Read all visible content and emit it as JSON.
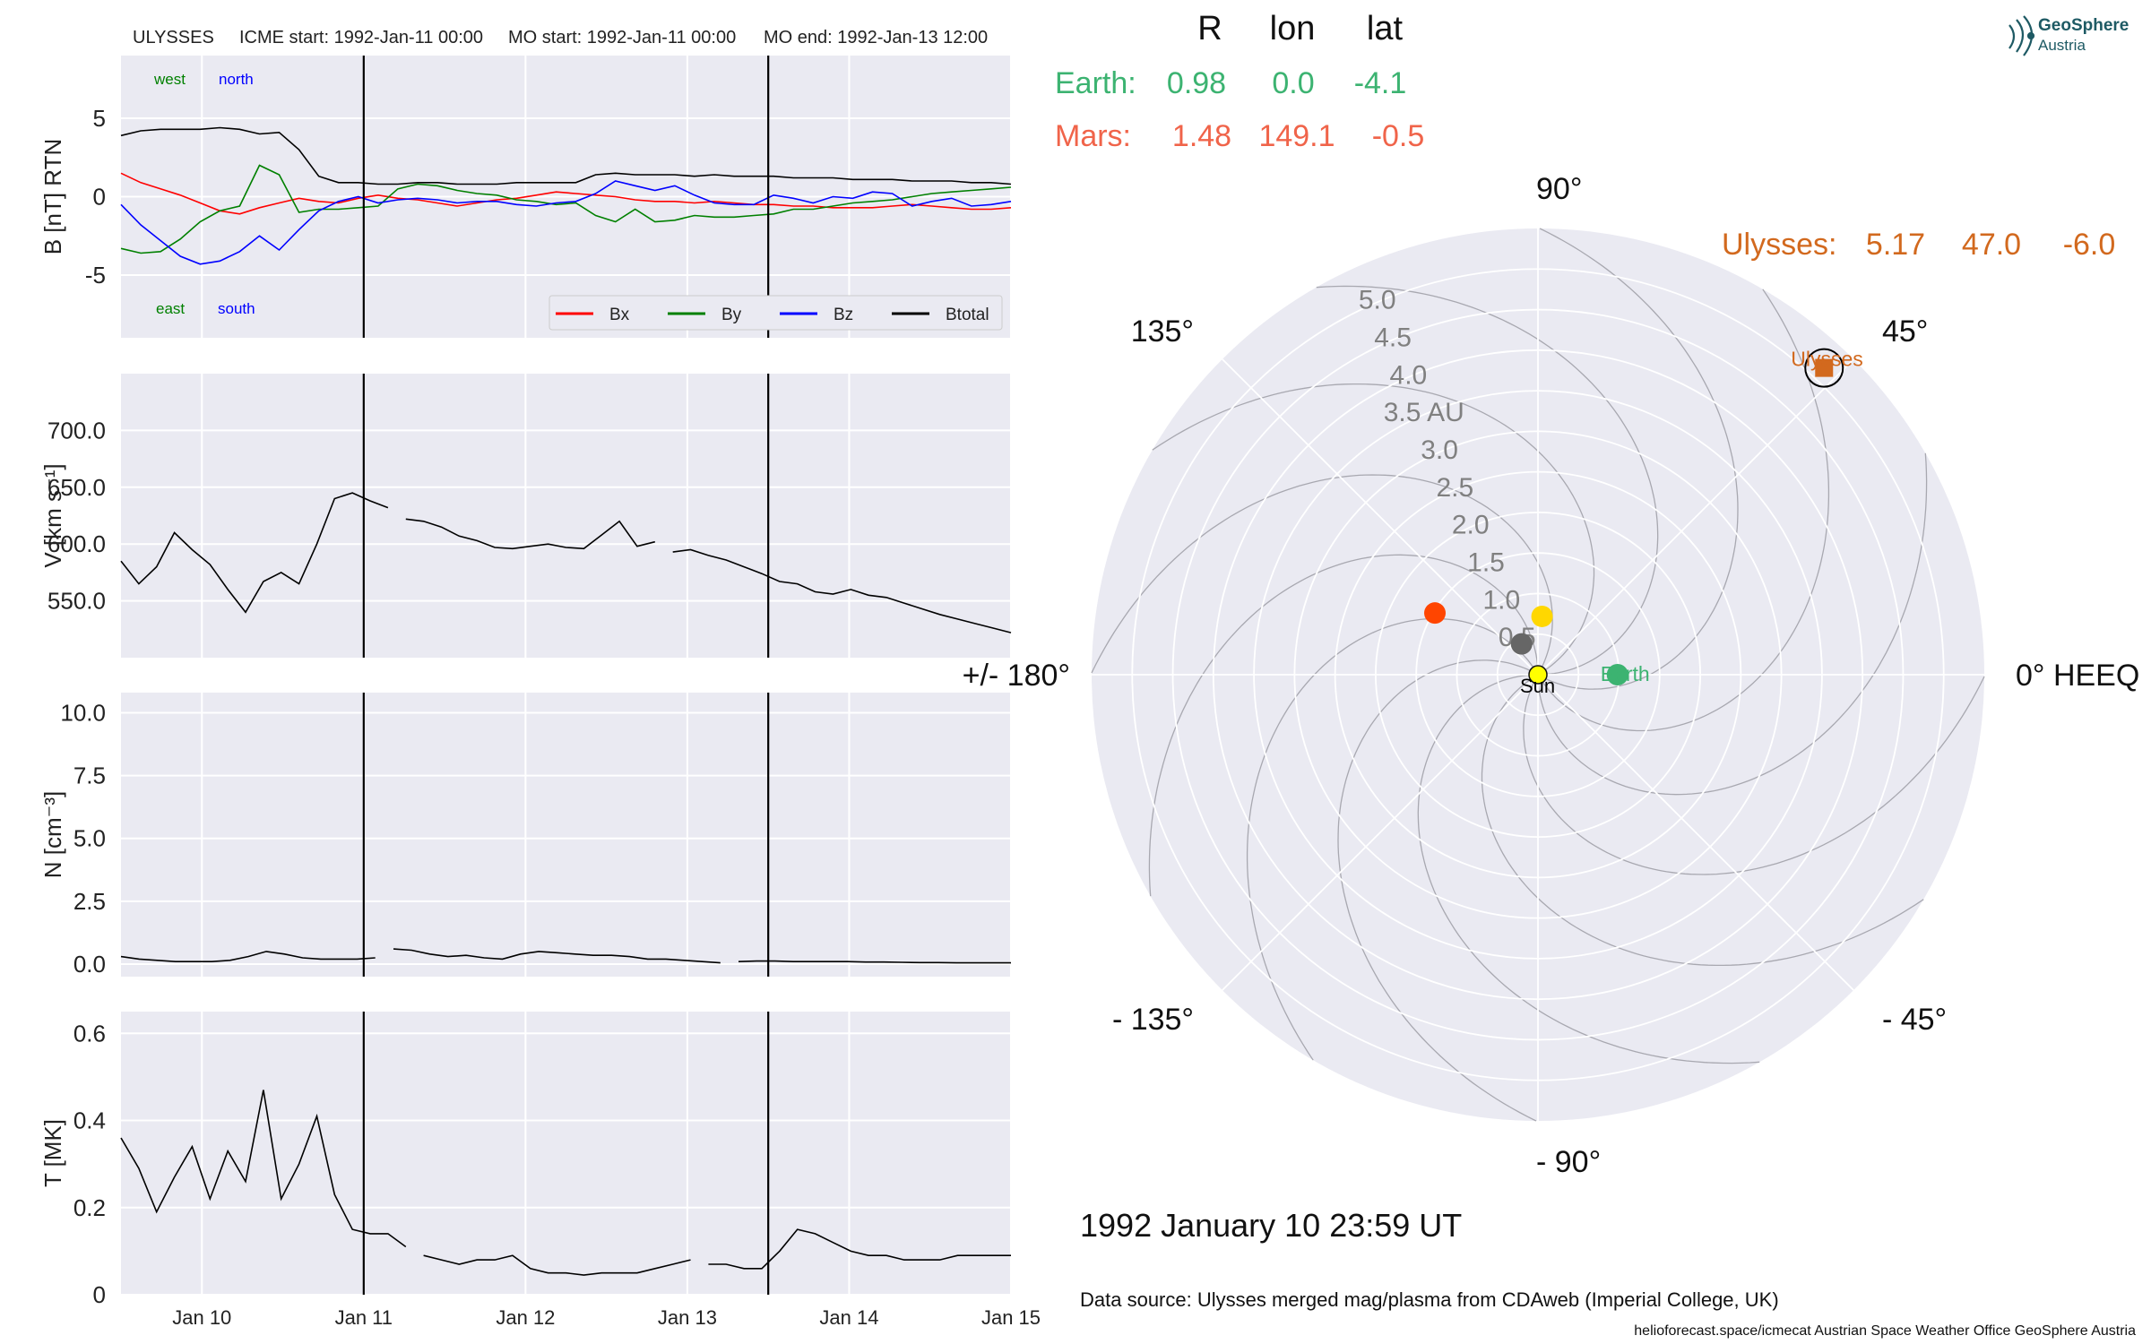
{
  "header": {
    "spacecraft": "ULYSSES",
    "icme_start": "ICME start: 1992-Jan-11 00:00",
    "mo_start": "MO start: 1992-Jan-11 00:00",
    "mo_end": "MO end: 1992-Jan-13 12:00"
  },
  "logo": {
    "line1": "GeoSphere",
    "line2": "Austria"
  },
  "position_table": {
    "headers": [
      "R",
      "lon",
      "lat"
    ],
    "earth": {
      "label": "Earth:",
      "R": "0.98",
      "lon": "0.0",
      "lat": "-4.1",
      "color": "#3cb371"
    },
    "mars": {
      "label": "Mars:",
      "R": "1.48",
      "lon": "149.1",
      "lat": "-0.5",
      "color": "#f0644a"
    },
    "ulysses": {
      "label": "Ulysses:",
      "R": "5.17",
      "lon": "47.0",
      "lat": "-6.0",
      "color": "#d2691e"
    }
  },
  "timestamp": "1992 January 10  23:59 UT",
  "data_source": "Data source: Ulysses merged mag/plasma from CDAweb (Imperial College, UK)",
  "footer": "helioforecast.space/icmecat   Austrian Space Weather Office   GeoSphere Austria",
  "colors": {
    "panel_bg": "#eaeaf2",
    "grid": "#ffffff",
    "bx": "#ff0000",
    "by": "#008000",
    "bz": "#0000ff",
    "btotal": "#000000"
  },
  "chart_data": [
    {
      "type": "line",
      "ylabel": "B [nT] RTN",
      "ylim": [
        -9,
        9
      ],
      "xlim": [
        0,
        132
      ],
      "x_start": "1992-01-09 12:00",
      "x_step_hours": 3,
      "x_ticks": [
        "Jan 10",
        "Jan 11",
        "Jan 12",
        "Jan 13",
        "Jan 14",
        "Jan 15"
      ],
      "y_ticks": [
        -5,
        0,
        5
      ],
      "legend_position": "lower-right",
      "annotations": {
        "west": "west",
        "north": "north",
        "east": "east",
        "south": "south"
      },
      "series": [
        {
          "name": "Bx",
          "color": "#ff0000",
          "values": [
            1.5,
            0.9,
            0.5,
            0.1,
            -0.4,
            -0.9,
            -1.1,
            -0.7,
            -0.4,
            -0.1,
            -0.3,
            -0.4,
            -0.1,
            0.1,
            -0.1,
            -0.2,
            -0.4,
            -0.6,
            -0.4,
            -0.2,
            -0.1,
            0.1,
            0.3,
            0.2,
            0.1,
            0.0,
            -0.2,
            -0.3,
            -0.3,
            -0.4,
            -0.3,
            -0.4,
            -0.5,
            -0.5,
            -0.6,
            -0.6,
            -0.7,
            -0.7,
            -0.7,
            -0.6,
            -0.5,
            -0.6,
            -0.7,
            -0.8,
            -0.8,
            -0.7
          ]
        },
        {
          "name": "By",
          "color": "#008000",
          "values": [
            -3.3,
            -3.6,
            -3.5,
            -2.7,
            -1.6,
            -0.9,
            -0.6,
            2.0,
            1.4,
            -1.0,
            -0.8,
            -0.8,
            -0.7,
            -0.6,
            0.5,
            0.8,
            0.7,
            0.4,
            0.2,
            0.1,
            -0.2,
            -0.3,
            -0.5,
            -0.4,
            -1.2,
            -1.6,
            -0.8,
            -1.6,
            -1.5,
            -1.2,
            -1.3,
            -1.3,
            -1.2,
            -1.1,
            -0.8,
            -0.8,
            -0.6,
            -0.4,
            -0.3,
            -0.2,
            0.0,
            0.2,
            0.3,
            0.4,
            0.5,
            0.6
          ]
        },
        {
          "name": "Bz",
          "color": "#0000ff",
          "values": [
            -0.5,
            -1.8,
            -2.8,
            -3.8,
            -4.3,
            -4.1,
            -3.5,
            -2.5,
            -3.4,
            -2.1,
            -0.9,
            -0.3,
            0.0,
            -0.4,
            -0.2,
            -0.1,
            -0.2,
            -0.4,
            -0.3,
            -0.3,
            -0.5,
            -0.6,
            -0.4,
            -0.3,
            0.2,
            1.0,
            0.7,
            0.4,
            0.7,
            0.1,
            -0.4,
            -0.5,
            -0.5,
            0.1,
            -0.1,
            -0.4,
            0.0,
            -0.1,
            0.3,
            0.2,
            -0.6,
            -0.3,
            -0.1,
            -0.6,
            -0.5,
            -0.3
          ]
        },
        {
          "name": "Btotal",
          "color": "#000000",
          "values": [
            3.9,
            4.2,
            4.3,
            4.3,
            4.3,
            4.4,
            4.3,
            4.0,
            4.1,
            3.0,
            1.3,
            0.9,
            0.9,
            0.8,
            0.8,
            0.9,
            0.9,
            0.8,
            0.8,
            0.8,
            0.9,
            0.9,
            0.9,
            0.9,
            1.4,
            1.5,
            1.4,
            1.4,
            1.4,
            1.3,
            1.4,
            1.3,
            1.3,
            1.3,
            1.2,
            1.2,
            1.2,
            1.1,
            1.1,
            1.1,
            1.0,
            1.0,
            1.0,
            0.9,
            0.9,
            0.8
          ]
        }
      ]
    },
    {
      "type": "line",
      "ylabel": "V [km s⁻¹]",
      "ylim": [
        500,
        750
      ],
      "xlim": [
        0,
        132
      ],
      "x_start": "1992-01-09 12:00",
      "x_step_hours": 3,
      "y_ticks": [
        550,
        600,
        650,
        700
      ],
      "gaps_after_index": [
        15,
        30
      ],
      "series": [
        {
          "name": "V",
          "color": "#000000",
          "values": [
            585,
            565,
            580,
            610,
            595,
            582,
            560,
            540,
            567,
            575,
            565,
            600,
            640,
            645,
            638,
            632,
            622,
            620,
            615,
            607,
            603,
            597,
            596,
            598,
            600,
            597,
            596,
            608,
            620,
            598,
            602,
            593,
            595,
            590,
            586,
            580,
            574,
            567,
            565,
            558,
            556,
            560,
            555,
            553,
            548,
            543,
            538,
            534,
            530,
            526,
            522
          ]
        }
      ]
    },
    {
      "type": "line",
      "ylabel": "N [cm⁻³]",
      "ylim": [
        -0.5,
        10.8
      ],
      "xlim": [
        0,
        132
      ],
      "x_start": "1992-01-09 12:00",
      "x_step_hours": 3,
      "y_ticks": [
        0.0,
        2.5,
        5.0,
        7.5,
        10.0
      ],
      "gaps_after_index": [
        14,
        33
      ],
      "series": [
        {
          "name": "N",
          "color": "#000000",
          "values": [
            0.3,
            0.2,
            0.15,
            0.1,
            0.1,
            0.1,
            0.15,
            0.3,
            0.5,
            0.4,
            0.25,
            0.2,
            0.2,
            0.2,
            0.25,
            0.6,
            0.55,
            0.4,
            0.3,
            0.35,
            0.25,
            0.2,
            0.4,
            0.5,
            0.45,
            0.4,
            0.35,
            0.35,
            0.3,
            0.2,
            0.2,
            0.15,
            0.1,
            0.05,
            0.1,
            0.12,
            0.12,
            0.1,
            0.1,
            0.1,
            0.1,
            0.08,
            0.08,
            0.07,
            0.06,
            0.06,
            0.05,
            0.05,
            0.05,
            0.05
          ]
        }
      ]
    },
    {
      "type": "line",
      "ylabel": "T [MK]",
      "ylim": [
        0.0,
        0.65
      ],
      "xlim": [
        0,
        132
      ],
      "x_start": "1992-01-09 12:00",
      "x_step_hours": 3,
      "y_ticks": [
        0.0,
        0.2,
        0.4,
        0.6
      ],
      "gaps_after_index": [
        16,
        32
      ],
      "series": [
        {
          "name": "T",
          "color": "#000000",
          "values": [
            0.36,
            0.29,
            0.19,
            0.27,
            0.34,
            0.22,
            0.33,
            0.26,
            0.47,
            0.22,
            0.3,
            0.41,
            0.23,
            0.15,
            0.14,
            0.14,
            0.11,
            0.09,
            0.08,
            0.07,
            0.08,
            0.08,
            0.09,
            0.06,
            0.05,
            0.05,
            0.045,
            0.05,
            0.05,
            0.05,
            0.06,
            0.07,
            0.08,
            0.07,
            0.07,
            0.06,
            0.06,
            0.1,
            0.15,
            0.14,
            0.12,
            0.1,
            0.09,
            0.09,
            0.08,
            0.08,
            0.08,
            0.09,
            0.09,
            0.09,
            0.09
          ]
        }
      ]
    },
    {
      "type": "scatter",
      "polar": true,
      "rmax_au": 5.5,
      "r_ticks": [
        "0.5",
        "1.0",
        "1.5",
        "2.0",
        "2.5",
        "3.0",
        "3.5 AU",
        "4.0",
        "4.5",
        "5.0"
      ],
      "angle_labels": [
        "90°",
        "45°",
        "0° HEEQ",
        "- 45°",
        "- 90°",
        "- 135°",
        "+/- 180°",
        "135°"
      ],
      "bodies": [
        {
          "name": "Sun",
          "r_au": 0.0,
          "lon_deg": 0.0,
          "color": "#ffff00",
          "label": "Sun"
        },
        {
          "name": "Earth",
          "r_au": 0.98,
          "lon_deg": 0.0,
          "color": "#3cb371",
          "label": "Earth"
        },
        {
          "name": "Mars",
          "r_au": 1.48,
          "lon_deg": 149.1,
          "color": "#ff4500",
          "label": ""
        },
        {
          "name": "Venus",
          "r_au": 0.72,
          "lon_deg": 86.0,
          "color": "#ffd700",
          "label": ""
        },
        {
          "name": "Mercury",
          "r_au": 0.43,
          "lon_deg": 118.0,
          "color": "#666666",
          "label": ""
        },
        {
          "name": "Ulysses",
          "r_au": 5.17,
          "lon_deg": 47.0,
          "color": "#d2691e",
          "label": "Ulysses"
        }
      ]
    }
  ]
}
